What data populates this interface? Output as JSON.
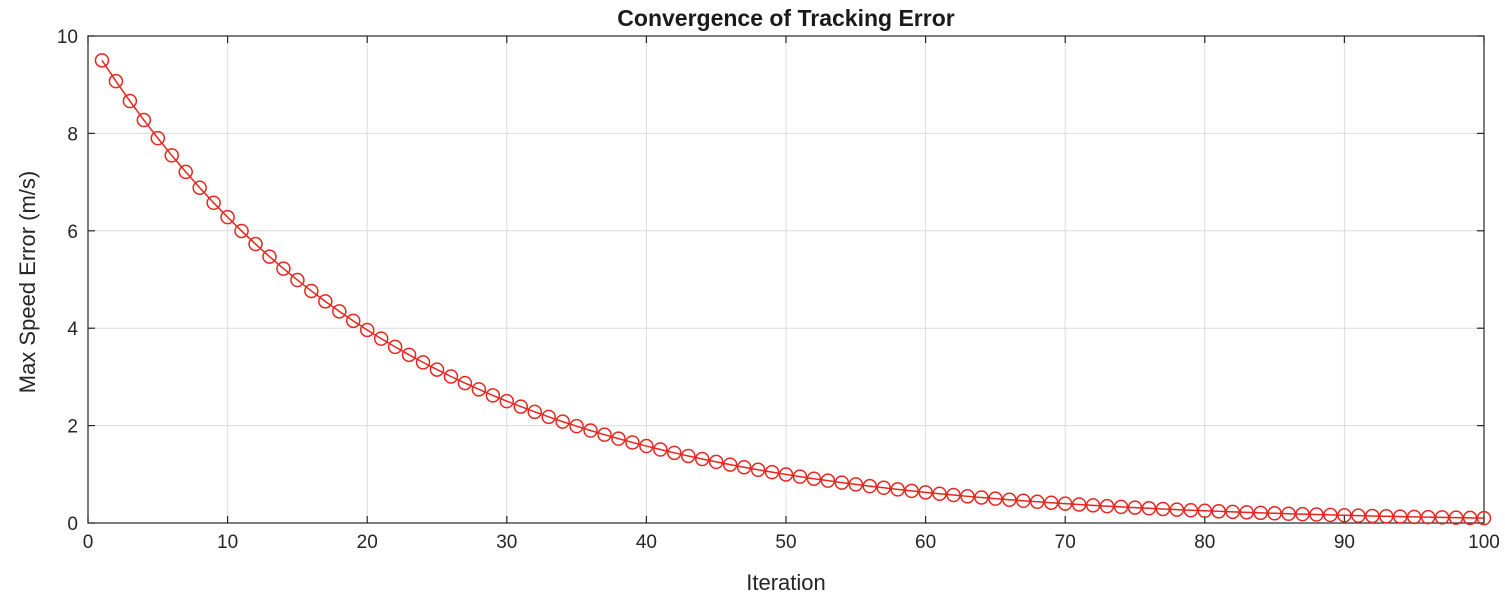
{
  "chart_data": {
    "type": "line",
    "title": "Convergence of Tracking Error",
    "xlabel": "Iteration",
    "ylabel": "Max Speed Error (m/s)",
    "xlim": [
      0,
      100
    ],
    "ylim": [
      0,
      10
    ],
    "xticks": [
      0,
      10,
      20,
      30,
      40,
      50,
      60,
      70,
      80,
      90,
      100
    ],
    "yticks": [
      0,
      2,
      4,
      6,
      8,
      10
    ],
    "grid": true,
    "legend": null,
    "colors": {
      "axis": "#262626",
      "grid": "#dcdcdc",
      "background": "#ffffff"
    },
    "series": [
      {
        "name": "max-speed-error",
        "marker": "o",
        "line_style": "solid",
        "color": "#e8261f",
        "x": [
          1,
          2,
          3,
          4,
          5,
          6,
          7,
          8,
          9,
          10,
          11,
          12,
          13,
          14,
          15,
          16,
          17,
          18,
          19,
          20,
          21,
          22,
          23,
          24,
          25,
          26,
          27,
          28,
          29,
          30,
          31,
          32,
          33,
          34,
          35,
          36,
          37,
          38,
          39,
          40,
          41,
          42,
          43,
          44,
          45,
          46,
          47,
          48,
          49,
          50,
          51,
          52,
          53,
          54,
          55,
          56,
          57,
          58,
          59,
          60,
          61,
          62,
          63,
          64,
          65,
          66,
          67,
          68,
          69,
          70,
          71,
          72,
          73,
          74,
          75,
          76,
          77,
          78,
          79,
          80,
          81,
          82,
          83,
          84,
          85,
          86,
          87,
          88,
          89,
          90,
          91,
          92,
          93,
          94,
          95,
          96,
          97,
          98,
          99,
          100
        ],
        "y": [
          9.5,
          9.073,
          8.665,
          8.275,
          7.903,
          7.548,
          7.209,
          6.885,
          6.575,
          6.28,
          5.997,
          5.728,
          5.47,
          5.224,
          4.989,
          4.765,
          4.551,
          4.346,
          4.151,
          3.964,
          3.786,
          3.616,
          3.453,
          3.298,
          3.15,
          3.008,
          2.873,
          2.744,
          2.62,
          2.502,
          2.39,
          2.283,
          2.18,
          2.082,
          1.988,
          1.899,
          1.814,
          1.732,
          1.654,
          1.58,
          1.509,
          1.441,
          1.376,
          1.314,
          1.255,
          1.199,
          1.145,
          1.093,
          1.044,
          0.997,
          0.952,
          0.909,
          0.869,
          0.83,
          0.792,
          0.757,
          0.723,
          0.69,
          0.659,
          0.63,
          0.601,
          0.574,
          0.548,
          0.524,
          0.5,
          0.478,
          0.456,
          0.436,
          0.416,
          0.397,
          0.38,
          0.363,
          0.346,
          0.331,
          0.316,
          0.302,
          0.288,
          0.275,
          0.263,
          0.251,
          0.24,
          0.229,
          0.219,
          0.209,
          0.199,
          0.19,
          0.182,
          0.174,
          0.166,
          0.158,
          0.151,
          0.145,
          0.138,
          0.132,
          0.126,
          0.12,
          0.115,
          0.11,
          0.105,
          0.1
        ]
      }
    ]
  }
}
